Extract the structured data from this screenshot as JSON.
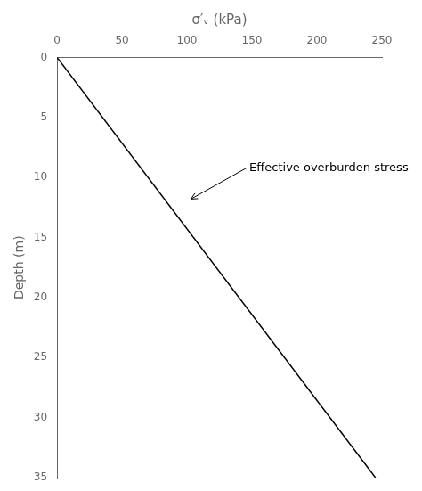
{
  "chart_data": {
    "type": "line",
    "x_label": "σ′ᵥ (kPa)",
    "y_label": "Depth (m)",
    "x": [
      0,
      245
    ],
    "values": [
      0,
      35
    ],
    "color": "#000000",
    "xlim": [
      0,
      250
    ],
    "ylim": [
      35,
      0
    ],
    "xticks": [
      0,
      50,
      100,
      150,
      200,
      250
    ],
    "yticks": [
      0,
      5,
      10,
      15,
      20,
      25,
      30,
      35
    ],
    "grid": false,
    "annotations": [
      {
        "text": "Effective overburden stress",
        "xy": [
          103,
          11.8
        ],
        "xytext": [
          148,
          9.2
        ]
      }
    ]
  }
}
